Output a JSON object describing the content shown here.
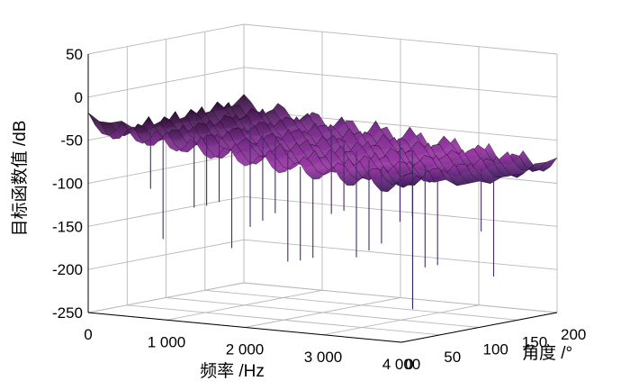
{
  "chart_data": {
    "type": "surface",
    "title": "",
    "xlabel": "频率 /Hz",
    "ylabel": "角度 /°",
    "zlabel": "目标函数值 /dB",
    "x_ticks": [
      "0",
      "1 000",
      "2 000",
      "3 000",
      "4 000"
    ],
    "x_tick_values": [
      0,
      1000,
      2000,
      3000,
      4000
    ],
    "y_ticks": [
      "0",
      "50",
      "100",
      "150",
      "200"
    ],
    "y_tick_values": [
      0,
      50,
      100,
      150,
      200
    ],
    "z_ticks": [
      "50",
      "0",
      "-50",
      "-100",
      "-150",
      "-200",
      "-250"
    ],
    "z_tick_values": [
      50,
      0,
      -50,
      -100,
      -150,
      -200,
      -250
    ],
    "xlim": [
      0,
      4000
    ],
    "ylim": [
      0,
      200
    ],
    "zlim": [
      -250,
      50
    ],
    "grid": true,
    "surface_color": "#7a2f8c",
    "surface_edge_color": "#1a0a1e",
    "surface_description_range_db": [
      -240,
      0
    ]
  }
}
